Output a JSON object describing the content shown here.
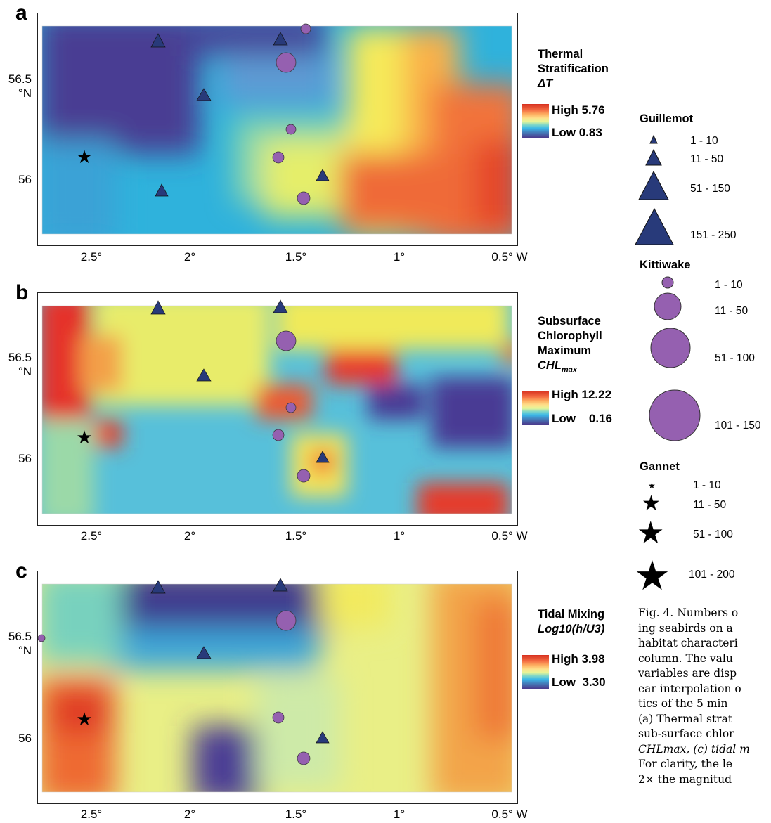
{
  "panels": [
    {
      "letter": "a",
      "var_title_lines": [
        "Thermal",
        "Stratification"
      ],
      "var_symbol": "ΔT",
      "high_label": "High 5.76",
      "low_label": "Low 0.83",
      "colorbar": {
        "high": 5.76,
        "low": 0.83
      }
    },
    {
      "letter": "b",
      "var_title_lines": [
        "Subsurface",
        "Chlorophyll",
        "Maximum"
      ],
      "var_symbol": "CHL",
      "var_symbol_sub": "max",
      "high_label": "High 12.22",
      "low_label": "Low    0.16",
      "colorbar": {
        "high": 12.22,
        "low": 0.16
      }
    },
    {
      "letter": "c",
      "var_title_lines": [
        "Tidal Mixing"
      ],
      "var_symbol": "Log10(h/U3)",
      "high_label": "High 3.98",
      "low_label": "Low  3.30",
      "colorbar": {
        "high": 3.98,
        "low": 3.3
      }
    }
  ],
  "axes": {
    "y_ticks": [
      "56.5",
      "°N",
      "56"
    ],
    "x_ticks": [
      "2.5°",
      "2°",
      "1.5°",
      "1°",
      "0.5° W"
    ]
  },
  "legend": {
    "guillemot": {
      "title": "Guillemot",
      "ranges": [
        "1 - 10",
        "11 - 50",
        "51 - 150",
        "151 - 250"
      ],
      "color": "#283a7a"
    },
    "kittiwake": {
      "title": "Kittiwake",
      "ranges": [
        "1 - 10",
        "11 - 50",
        "51 - 100",
        "101 - 150"
      ],
      "color": "#9560b0"
    },
    "gannet": {
      "title": "Gannet",
      "ranges": [
        "1 - 10",
        "11 - 50",
        "51 - 100",
        "101 - 200"
      ],
      "color": "#000000"
    }
  },
  "caption_lines": [
    "Fig. 4. Numbers o",
    "ing seabirds on a",
    "habitat characteri",
    "column. The valu",
    "variables are disp",
    "ear interpolation o",
    "tics of the 5 min",
    "(a) Thermal strat",
    "sub-surface chlor",
    "CHLmax, (c) tidal m",
    "For clarity, the le",
    "2× the magnitud"
  ]
}
